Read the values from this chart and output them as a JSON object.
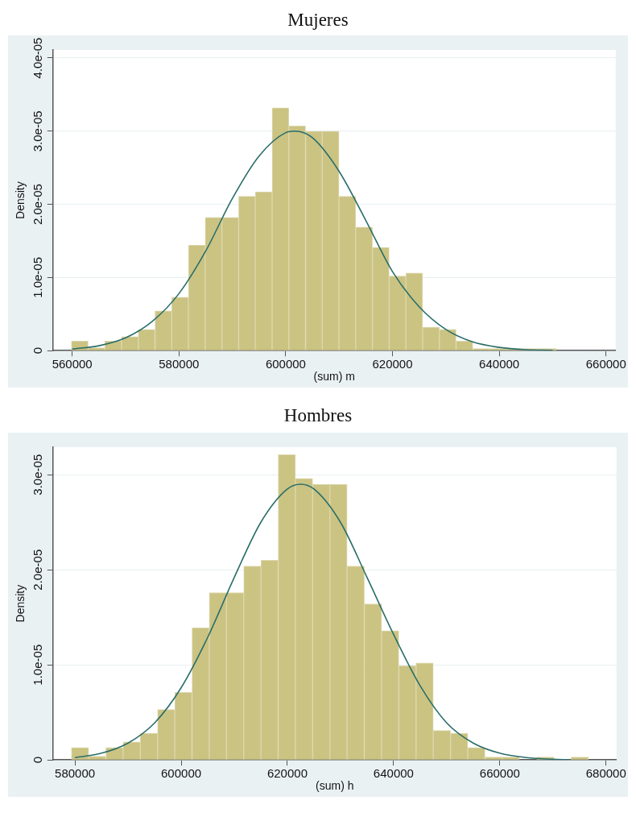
{
  "chart_data": [
    {
      "type": "histogram",
      "title": "Mujeres",
      "xlabel": "(sum) m",
      "ylabel": "Density",
      "xlim": [
        556400,
        661800
      ],
      "xticks": [
        560000,
        580000,
        600000,
        620000,
        640000,
        660000
      ],
      "ylim": [
        0,
        4.11e-05
      ],
      "yticks": [
        0,
        {
          "value": 1e-05,
          "label": "1.0e-05"
        },
        {
          "value": 2e-05,
          "label": "2.0e-05"
        },
        {
          "value": 3e-05,
          "label": "3.0e-05"
        },
        {
          "value": 4e-05,
          "label": "4.0e-05"
        }
      ],
      "grid": "y",
      "legend": false,
      "marker": "none",
      "bins": [
        559850,
        562983,
        566116,
        569249,
        572382,
        575515,
        578648,
        581781,
        584914,
        588047,
        591180,
        594313,
        597446,
        600579,
        603712,
        606845,
        609978,
        613111,
        616244,
        619377,
        622510,
        625643,
        628776,
        631909,
        635042,
        638175,
        641308,
        644441,
        647574,
        650707
      ],
      "series": [
        {
          "color": "#cbc382",
          "values": [
            1.3e-06,
            4e-07,
            1.3e-06,
            1.9e-06,
            2.9e-06,
            5.45e-06,
            7.3e-06,
            1.44e-05,
            1.82e-05,
            1.82e-05,
            2.11e-05,
            2.17e-05,
            3.32e-05,
            3.07e-05,
            3e-05,
            3e-05,
            2.11e-05,
            1.69e-05,
            1.41e-05,
            1.02e-05,
            1.06e-05,
            3.2e-06,
            2.9e-06,
            1.3e-06,
            3e-07,
            3e-07,
            3e-07,
            3e-07,
            3e-07
          ]
        },
        {
          "type": "line",
          "color": "#2a6e6a",
          "x": [
            560000,
            565000,
            570000,
            575000,
            580000,
            585000,
            590000,
            595000,
            600000,
            601700,
            605000,
            610000,
            615000,
            620000,
            625000,
            630000,
            635000,
            640000,
            645000,
            650000
          ],
          "values": [
            2.2e-07,
            6.7e-07,
            1.75e-06,
            4e-06,
            7.8e-06,
            1.36e-05,
            2.08e-05,
            2.66e-05,
            2.98e-05,
            3e-05,
            2.91e-05,
            2.45e-05,
            1.78e-05,
            1.08e-05,
            6e-06,
            2.9e-06,
            1.2e-06,
            4.5e-07,
            1.3e-07,
            4e-08
          ]
        }
      ]
    },
    {
      "type": "histogram",
      "title": "Hombres",
      "xlabel": "(sum) h",
      "ylabel": "Density",
      "xlim": [
        575860,
        681960
      ],
      "xticks": [
        580000,
        600000,
        620000,
        640000,
        660000,
        680000
      ],
      "ylim": [
        0,
        3.29e-05
      ],
      "yticks": [
        0,
        {
          "value": 1e-05,
          "label": "1.0e-05"
        },
        {
          "value": 2e-05,
          "label": "2.0e-05"
        },
        {
          "value": 3e-05,
          "label": "3.0e-05"
        }
      ],
      "grid": "y",
      "legend": false,
      "marker": "none",
      "bins": [
        579330,
        582575,
        585820,
        589065,
        592310,
        595555,
        598800,
        602045,
        605290,
        608535,
        611780,
        615025,
        618270,
        621515,
        624760,
        628005,
        631250,
        634495,
        637740,
        640985,
        644230,
        647475,
        650720,
        653965,
        657210,
        660455,
        663700,
        666945,
        670190,
        673435,
        676680
      ],
      "series": [
        {
          "color": "#cbc382",
          "values": [
            1.3e-06,
            4e-07,
            1.3e-06,
            1.9e-06,
            2.8e-06,
            5.3e-06,
            7.1e-06,
            1.39e-05,
            1.76e-05,
            1.76e-05,
            2.04e-05,
            2.1e-05,
            3.21e-05,
            2.96e-05,
            2.9e-05,
            2.9e-05,
            2.04e-05,
            1.64e-05,
            1.36e-05,
            9.9e-06,
            1.02e-05,
            3.1e-06,
            2.8e-06,
            1.3e-06,
            3e-07,
            3e-07,
            0,
            3e-07,
            0,
            3e-07
          ]
        },
        {
          "type": "line",
          "color": "#2a6e6a",
          "x": [
            580000,
            585000,
            590000,
            595000,
            600000,
            605000,
            610000,
            615000,
            620000,
            622500,
            625000,
            630000,
            635000,
            640000,
            645000,
            650000,
            655000,
            660000,
            665000,
            670000,
            673000
          ],
          "values": [
            2.5e-07,
            7.1e-07,
            1.78e-06,
            3.9e-06,
            7.6e-06,
            1.29e-05,
            1.92e-05,
            2.5e-05,
            2.85e-05,
            2.9e-05,
            2.85e-05,
            2.5e-05,
            1.92e-05,
            1.32e-05,
            7.8e-06,
            3.9e-06,
            1.78e-06,
            7.1e-07,
            2.5e-07,
            7e-08,
            3e-08
          ]
        }
      ]
    }
  ]
}
